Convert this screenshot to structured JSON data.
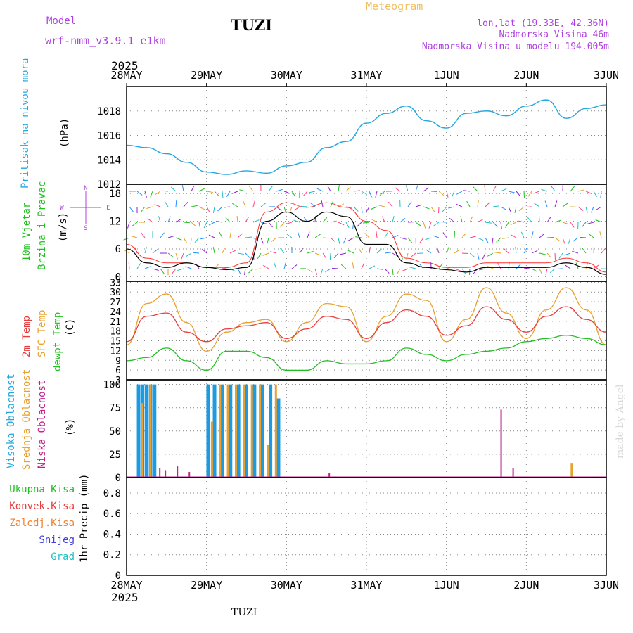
{
  "header": {
    "model_label": "Model",
    "model_name": "wrf-nmm_v3.9.1 e1km",
    "station": "TUZI",
    "title": "Meteogram",
    "coords": "lon,lat (19.33E, 42.36N)",
    "elevation": "Nadmorska Visina 46m",
    "model_elevation": "Nadmorska Visina u modelu 194.005m",
    "top_year": "2025",
    "bottom_year": "2025",
    "footer_station": "TUZI",
    "watermark": "made by Angel"
  },
  "colors": {
    "pressure": "#22a7e0",
    "wind_speed": "#000000",
    "gust": "#ff3030",
    "t2m": "#e83c3c",
    "sfc": "#e8a030",
    "dewpt": "#20c020",
    "cloud_high": "#1e9be0",
    "cloud_mid": "#e8a030",
    "cloud_low": "#c0208a",
    "label_wind": "#20c020",
    "label_dir": "#b040e0",
    "label_model": "#b040e0",
    "label_title": "#f0c060"
  },
  "x_axis": {
    "ticks": [
      "28MAY",
      "29MAY",
      "30MAY",
      "31MAY",
      "1JUN",
      "2JUN",
      "3JUN"
    ]
  },
  "panels": {
    "pressure": {
      "label": "Pritisak na nivou mora",
      "unit": "(hPa)",
      "ticks": [
        "1012",
        "1014",
        "1016",
        "1018"
      ]
    },
    "wind": {
      "label1": "10m Vjetar",
      "label2": "Brzina i Pravac",
      "unit": "(m/s)",
      "ticks": [
        "0",
        "6",
        "12",
        "18"
      ],
      "compass": [
        "N",
        "E",
        "S",
        "W"
      ]
    },
    "temp": {
      "label1": "2m Temp",
      "label2": "SFC Temp",
      "label3": "dewpt Temp",
      "unit": "(C)",
      "ticks": [
        "3",
        "6",
        "9",
        "12",
        "15",
        "18",
        "21",
        "24",
        "27",
        "30",
        "33"
      ]
    },
    "cloud": {
      "label1": "Visoka Oblacnost",
      "label2": "Srednja Oblacnost",
      "label3": "Niska Oblacnost",
      "unit": "(%)",
      "ticks": [
        "0",
        "25",
        "50",
        "75",
        "100"
      ]
    },
    "precip": {
      "labels": [
        "Ukupna Kisa",
        "Konvek.Kisa",
        "Zaledj.Kisa",
        "Snijeg",
        "Grad"
      ],
      "label_colors": [
        "#20c020",
        "#e83c3c",
        "#f08030",
        "#4040e0",
        "#20c0c0"
      ],
      "unit": "1hr Precip (mm)",
      "ticks": [
        "0",
        "0.2",
        "0.4",
        "0.6",
        "0.8"
      ]
    }
  },
  "chart_data": [
    {
      "type": "line",
      "title": "Pritisak na nivou mora",
      "ylabel": "(hPa)",
      "x_days": [
        0,
        0.25,
        0.5,
        0.75,
        1,
        1.25,
        1.5,
        1.75,
        2,
        2.25,
        2.5,
        2.75,
        3,
        3.25,
        3.5,
        3.75,
        4,
        4.25,
        4.5,
        4.75,
        5,
        5.25,
        5.5,
        5.75,
        6
      ],
      "ylim": [
        1012,
        1020
      ],
      "series": [
        {
          "values": [
            1015.2,
            1015.0,
            1014.5,
            1013.8,
            1013.0,
            1012.8,
            1013.1,
            1012.9,
            1013.5,
            1013.8,
            1015.0,
            1015.5,
            1017.0,
            1017.8,
            1018.4,
            1017.2,
            1016.6,
            1017.8,
            1018.0,
            1017.6,
            1018.4,
            1018.9,
            1017.4,
            1018.2,
            1018.5
          ]
        }
      ]
    },
    {
      "type": "line",
      "title": "10m Vjetar Brzina i Pravac",
      "ylabel": "(m/s)",
      "ylim": [
        -1,
        20
      ],
      "x_days": [
        0,
        0.25,
        0.5,
        0.75,
        1,
        1.25,
        1.5,
        1.75,
        2,
        2.25,
        2.5,
        2.75,
        3,
        3.25,
        3.5,
        3.75,
        4,
        4.25,
        4.5,
        4.75,
        5,
        5.25,
        5.5,
        5.75,
        6
      ],
      "series": [
        {
          "name": "speed",
          "values": [
            6,
            3,
            2,
            3,
            2,
            1.5,
            2,
            12,
            14,
            12,
            14,
            13,
            7,
            7,
            3,
            2,
            1.5,
            1,
            2,
            2,
            2,
            2,
            3,
            2,
            0.5
          ]
        },
        {
          "name": "gust",
          "values": [
            7,
            4,
            3,
            3,
            2,
            2,
            3,
            14,
            16,
            15,
            16,
            15,
            12,
            10,
            4,
            3,
            2,
            2,
            3,
            3,
            3,
            3,
            4,
            3,
            1
          ]
        }
      ]
    },
    {
      "type": "line",
      "title": "2m Temp / SFC Temp / dewpt Temp",
      "ylabel": "(C)",
      "ylim": [
        3,
        34
      ],
      "x_days": [
        0,
        0.25,
        0.5,
        0.75,
        1,
        1.25,
        1.5,
        1.75,
        2,
        2.25,
        2.5,
        2.75,
        3,
        3.25,
        3.5,
        3.75,
        4,
        4.25,
        4.5,
        4.75,
        5,
        5.25,
        5.5,
        5.75,
        6
      ],
      "series": [
        {
          "name": "2m Temp",
          "values": [
            15,
            23,
            24,
            18,
            15,
            19,
            20,
            21,
            16,
            19,
            23,
            22,
            16,
            21,
            25,
            23,
            17,
            20,
            26,
            22,
            18,
            23,
            26,
            22,
            18
          ]
        },
        {
          "name": "SFC Temp",
          "values": [
            14,
            27,
            30,
            21,
            12,
            18,
            21,
            22,
            15,
            21,
            27,
            26,
            15,
            23,
            30,
            28,
            15,
            22,
            32,
            24,
            16,
            25,
            32,
            25,
            14
          ]
        },
        {
          "name": "dewpt Temp",
          "values": [
            9,
            10,
            13,
            9,
            6,
            12,
            12,
            10,
            6,
            6,
            9,
            8,
            8,
            9,
            13,
            11,
            9,
            11,
            12,
            13,
            15,
            16,
            17,
            16,
            14
          ]
        }
      ]
    },
    {
      "type": "bar",
      "title": "Visoka / Srednja / Niska Oblacnost",
      "ylabel": "(%)",
      "ylim": [
        0,
        100
      ],
      "series": [
        {
          "name": "Visoka Oblacnost",
          "x_days": [
            0.15,
            0.2,
            0.25,
            0.3,
            0.35,
            1.02,
            1.1,
            1.2,
            1.3,
            1.4,
            1.5,
            1.6,
            1.7,
            1.8,
            1.9
          ],
          "values": [
            100,
            100,
            100,
            100,
            100,
            100,
            100,
            100,
            100,
            100,
            100,
            100,
            100,
            100,
            85
          ]
        },
        {
          "name": "Srednja Oblacnost",
          "x_days": [
            0.18,
            0.28,
            1.05,
            1.15,
            1.25,
            1.35,
            1.45,
            1.55,
            1.65,
            1.75,
            1.85,
            5.55
          ],
          "values": [
            80,
            100,
            60,
            100,
            100,
            100,
            100,
            100,
            100,
            35,
            100,
            15
          ]
        },
        {
          "name": "Niska Oblacnost",
          "x_days": [
            0.38,
            0.45,
            0.6,
            0.75,
            2.5,
            4.65,
            4.8
          ],
          "values": [
            10,
            8,
            12,
            6,
            5,
            73,
            10
          ]
        }
      ]
    },
    {
      "type": "line",
      "title": "1hr Precip (mm)",
      "ylabel": "1hr Precip (mm)",
      "ylim": [
        0,
        1
      ],
      "series": []
    }
  ]
}
